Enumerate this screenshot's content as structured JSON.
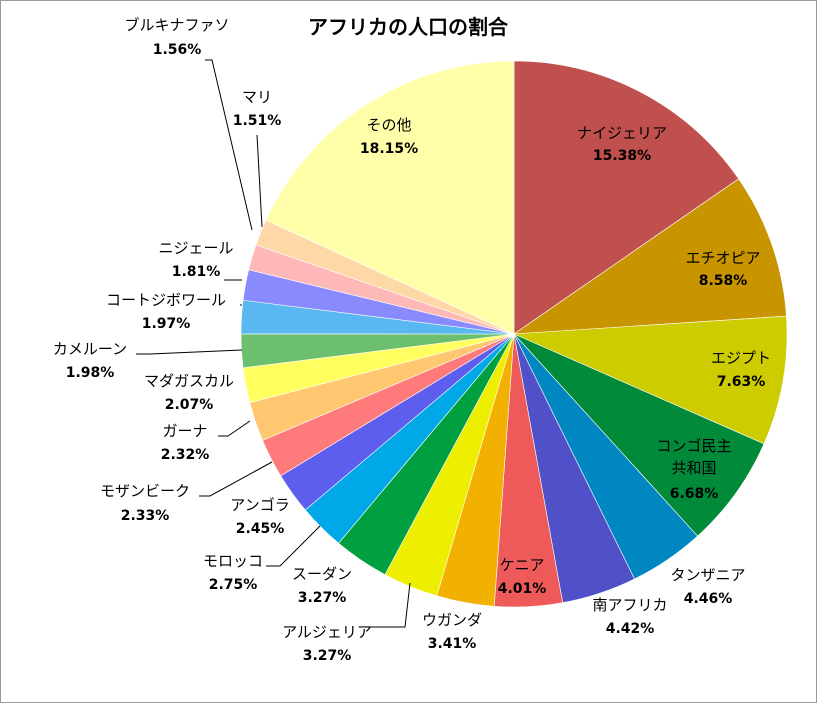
{
  "chart_data": {
    "type": "pie",
    "title": "アフリカの人口の割合",
    "start_angle_deg": 0,
    "direction": "clockwise",
    "legend": "none",
    "slices": [
      {
        "label": "ナイジェリア",
        "value_label": "15.38%",
        "value": 15.38,
        "color": "#C0504D"
      },
      {
        "label": "エチオピア",
        "value_label": "8.58%",
        "value": 8.58,
        "color": "#C89400"
      },
      {
        "label": "エジプト",
        "value_label": "7.63%",
        "value": 7.63,
        "color": "#CCCC00"
      },
      {
        "label": "コンゴ民主\n共和国",
        "value_label": "6.68%",
        "value": 6.68,
        "color": "#008A3A"
      },
      {
        "label": "タンザニア",
        "value_label": "4.46%",
        "value": 4.46,
        "color": "#0086C0"
      },
      {
        "label": "南アフリカ",
        "value_label": "4.42%",
        "value": 4.42,
        "color": "#5050C8"
      },
      {
        "label": "ケニア",
        "value_label": "4.01%",
        "value": 4.01,
        "color": "#EE5A5A"
      },
      {
        "label": "ウガンダ",
        "value_label": "3.41%",
        "value": 3.41,
        "color": "#F2B000"
      },
      {
        "label": "アルジェリア",
        "value_label": "3.27%",
        "value": 3.27,
        "color": "#EEEE00"
      },
      {
        "label": "スーダン",
        "value_label": "3.27%",
        "value": 3.27,
        "color": "#00A040"
      },
      {
        "label": "モロッコ",
        "value_label": "2.75%",
        "value": 2.75,
        "color": "#00A8E8"
      },
      {
        "label": "アンゴラ",
        "value_label": "2.45%",
        "value": 2.45,
        "color": "#5E5EEE"
      },
      {
        "label": "モザンビーク",
        "value_label": "2.33%",
        "value": 2.33,
        "color": "#FF7A7A"
      },
      {
        "label": "ガーナ",
        "value_label": "2.32%",
        "value": 2.32,
        "color": "#FFC870"
      },
      {
        "label": "マダガスカル",
        "value_label": "2.07%",
        "value": 2.07,
        "color": "#FFFF60"
      },
      {
        "label": "カメルーン",
        "value_label": "1.98%",
        "value": 1.98,
        "color": "#6CBF6C"
      },
      {
        "label": "コートジボワール",
        "value_label": "1.97%",
        "value": 1.97,
        "color": "#5AB8F0"
      },
      {
        "label": "ニジェール",
        "value_label": "1.81%",
        "value": 1.81,
        "color": "#8A8AFF"
      },
      {
        "label": "マリ",
        "value_label": "1.51%",
        "value": 1.51,
        "color": "#FFB8B8"
      },
      {
        "label": "ブルキナファソ",
        "value_label": "1.56%",
        "value": 1.56,
        "color": "#FFD8A8"
      },
      {
        "label": "その他",
        "value_label": "18.15%",
        "value": 18.15,
        "color": "#FFFFAA"
      }
    ]
  }
}
